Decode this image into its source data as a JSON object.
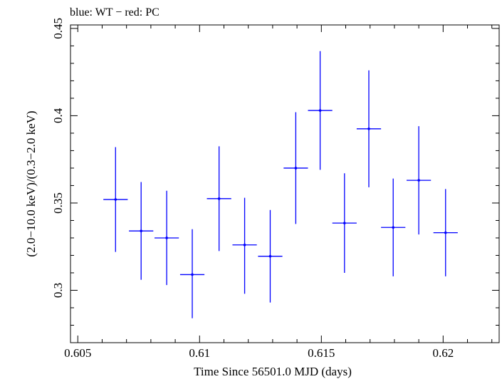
{
  "chart_data": {
    "type": "scatter",
    "title": "blue: WT − red: PC",
    "xlabel": "Time Since 56501.0 MJD (days)",
    "ylabel": "(2.0−10.0 keV)/(0.3−2.0 keV)",
    "xlim": [
      0.6047,
      0.6223
    ],
    "ylim": [
      0.27,
      0.452
    ],
    "xticks": [
      {
        "value": 0.605,
        "label": "0.605"
      },
      {
        "value": 0.61,
        "label": "0.61"
      },
      {
        "value": 0.615,
        "label": "0.615"
      },
      {
        "value": 0.62,
        "label": "0.62"
      }
    ],
    "yticks": [
      {
        "value": 0.3,
        "label": "0.3"
      },
      {
        "value": 0.35,
        "label": "0.35"
      },
      {
        "value": 0.4,
        "label": "0.4"
      },
      {
        "value": 0.45,
        "label": "0.45"
      }
    ],
    "grid": false,
    "series": [
      {
        "name": "WT",
        "color": "#0000ff",
        "points": [
          {
            "x": 0.60655,
            "xerr": 0.0005,
            "y": 0.352,
            "ylo": 0.322,
            "yhi": 0.382
          },
          {
            "x": 0.6076,
            "xerr": 0.0005,
            "y": 0.334,
            "ylo": 0.306,
            "yhi": 0.362
          },
          {
            "x": 0.60865,
            "xerr": 0.0005,
            "y": 0.33,
            "ylo": 0.303,
            "yhi": 0.357
          },
          {
            "x": 0.6097,
            "xerr": 0.0005,
            "y": 0.309,
            "ylo": 0.284,
            "yhi": 0.335
          },
          {
            "x": 0.6108,
            "xerr": 0.0005,
            "y": 0.3525,
            "ylo": 0.3225,
            "yhi": 0.3825
          },
          {
            "x": 0.61185,
            "xerr": 0.0005,
            "y": 0.326,
            "ylo": 0.298,
            "yhi": 0.353
          },
          {
            "x": 0.6129,
            "xerr": 0.0005,
            "y": 0.3195,
            "ylo": 0.293,
            "yhi": 0.346
          },
          {
            "x": 0.61395,
            "xerr": 0.0005,
            "y": 0.37,
            "ylo": 0.338,
            "yhi": 0.402
          },
          {
            "x": 0.61495,
            "xerr": 0.0005,
            "y": 0.403,
            "ylo": 0.369,
            "yhi": 0.437
          },
          {
            "x": 0.61595,
            "xerr": 0.0005,
            "y": 0.3385,
            "ylo": 0.31,
            "yhi": 0.367
          },
          {
            "x": 0.61695,
            "xerr": 0.0005,
            "y": 0.3925,
            "ylo": 0.359,
            "yhi": 0.426
          },
          {
            "x": 0.61795,
            "xerr": 0.0005,
            "y": 0.336,
            "ylo": 0.308,
            "yhi": 0.364
          },
          {
            "x": 0.619,
            "xerr": 0.0005,
            "y": 0.363,
            "ylo": 0.332,
            "yhi": 0.394
          },
          {
            "x": 0.6201,
            "xerr": 0.0005,
            "y": 0.333,
            "ylo": 0.308,
            "yhi": 0.358
          }
        ]
      }
    ]
  }
}
